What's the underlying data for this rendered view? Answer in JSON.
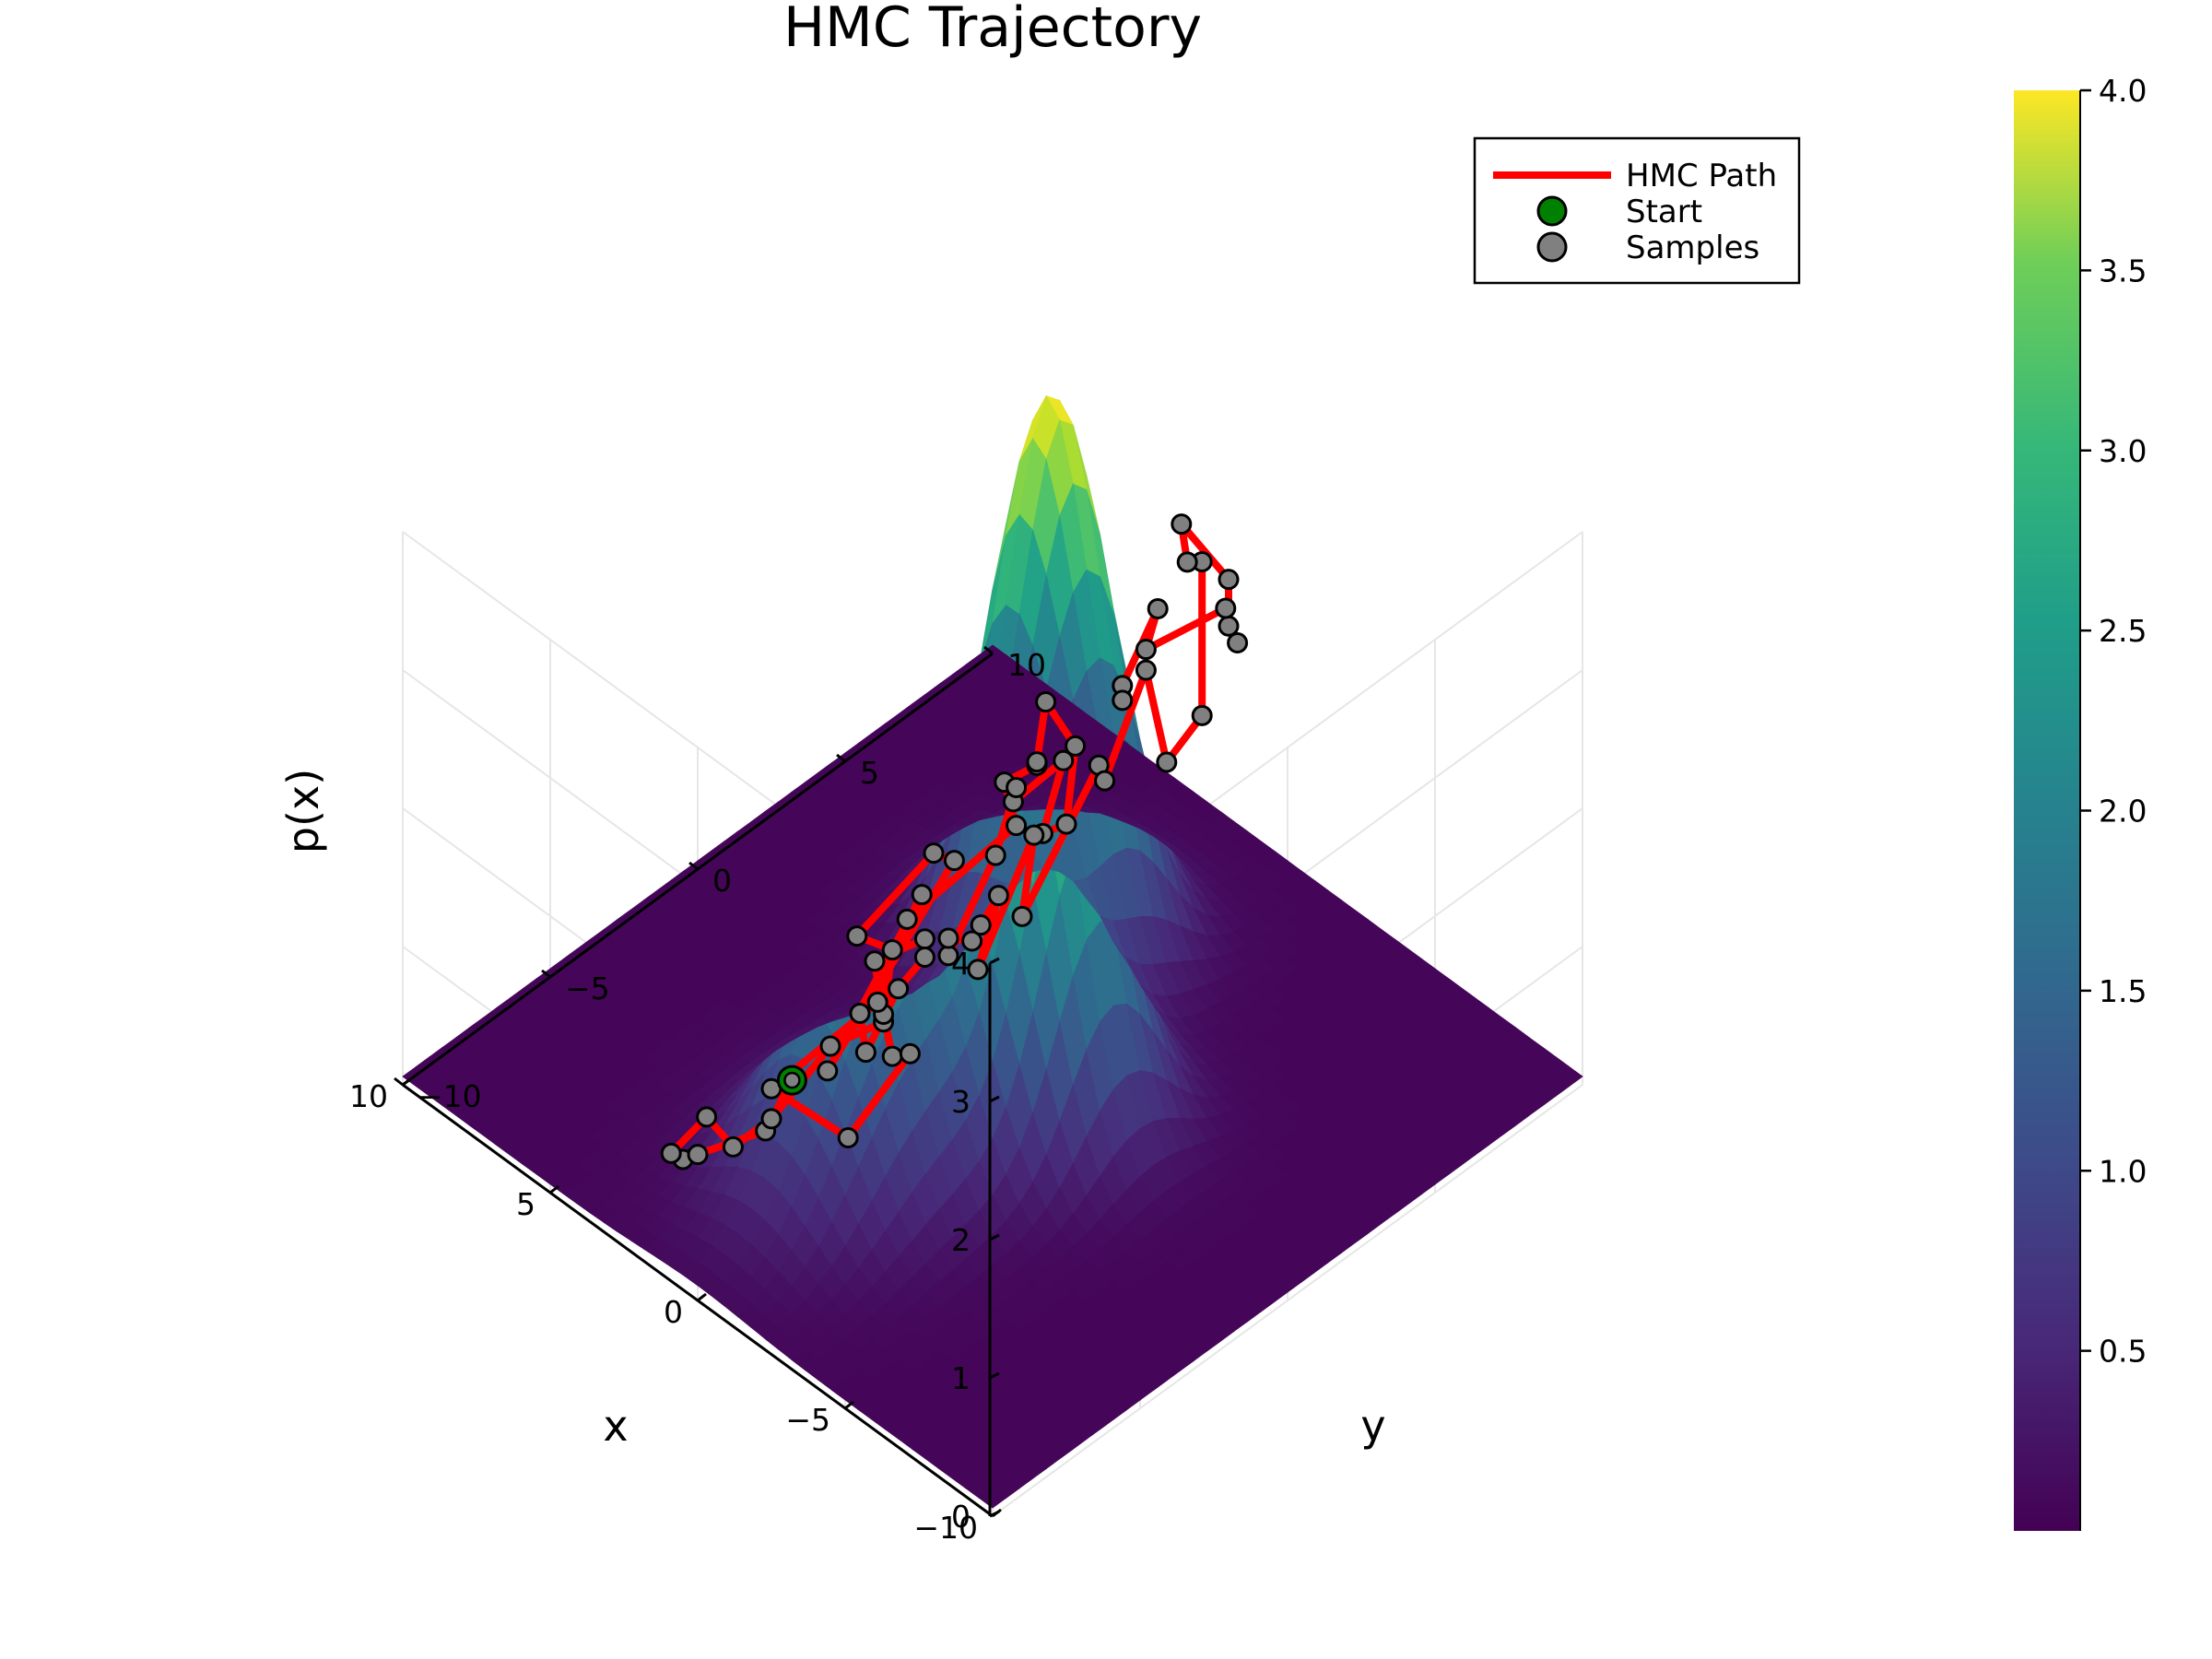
{
  "chart_data": {
    "type": "surface",
    "title": "HMC Trajectory",
    "xlabel": "x",
    "ylabel": "y",
    "zlabel": "p(x)",
    "xlim": [
      -10,
      10
    ],
    "ylim": [
      -10,
      10
    ],
    "zlim": [
      0,
      4
    ],
    "x_ticks": [
      -10,
      -5,
      0,
      5,
      10
    ],
    "x_tick_labels": [
      "−10",
      "−5",
      "0",
      "5",
      "10"
    ],
    "y_ticks": [
      -10,
      -5,
      0,
      5,
      10
    ],
    "y_tick_labels": [
      "−10",
      "−5",
      "0",
      "5",
      "10"
    ],
    "z_ticks": [
      0,
      1,
      2,
      3,
      4
    ],
    "z_tick_labels": [
      "0",
      "1",
      "2",
      "3",
      "4"
    ],
    "grid": true,
    "colormap": "viridis",
    "colorbar": {
      "range": [
        0,
        4
      ],
      "ticks": [
        0.5,
        1.0,
        1.5,
        2.0,
        2.5,
        3.0,
        3.5,
        4.0
      ],
      "tick_labels": [
        "0.5",
        "1.0",
        "1.5",
        "2.0",
        "2.5",
        "3.0",
        "3.5",
        "4.0"
      ]
    },
    "legend": {
      "position": "top-right",
      "entries": [
        {
          "label": "HMC Path",
          "kind": "line",
          "color": "#ff0000"
        },
        {
          "label": "Start",
          "kind": "marker",
          "color": "#008000"
        },
        {
          "label": "Samples",
          "kind": "marker",
          "color": "#808080"
        }
      ]
    },
    "surface_modes": [
      {
        "x": 0,
        "y": -4,
        "amp": 2.0,
        "sx": 1.7,
        "sy": 2.2
      },
      {
        "x": -2,
        "y": 0,
        "amp": 3.0,
        "sx": 1.5,
        "sy": 1.5
      },
      {
        "x": 2,
        "y": 4,
        "amp": 4.0,
        "sx": 1.5,
        "sy": 1.5
      }
    ],
    "start": {
      "x": 0.3,
      "y": -6.5,
      "z": 1.0
    },
    "samples": [
      [
        0.3,
        -6.5,
        1.0
      ],
      [
        1.5,
        -6.2,
        0.4
      ],
      [
        3.2,
        -7.3,
        0.1
      ],
      [
        3.0,
        -7.0,
        0.12
      ],
      [
        3.7,
        -7.2,
        0.05
      ],
      [
        3.4,
        -6.3,
        0.22
      ],
      [
        2.8,
        -6.0,
        0.05
      ],
      [
        2.0,
        -5.5,
        0.3
      ],
      [
        -0.2,
        -5.7,
        1.2
      ],
      [
        -1.5,
        -5.2,
        1.5
      ],
      [
        -0.9,
        -4.9,
        1.8
      ],
      [
        -2.2,
        -4.5,
        2.1
      ],
      [
        -2.3,
        -4.6,
        2.0
      ],
      [
        -1.3,
        -4.5,
        1.6
      ],
      [
        -0.3,
        -4.6,
        1.0
      ],
      [
        0.7,
        -3.8,
        1.0
      ],
      [
        -0.8,
        -3.2,
        2.0
      ],
      [
        1.2,
        -4.4,
        0.6
      ],
      [
        -1.2,
        -2.5,
        2.2
      ],
      [
        -1.0,
        -3.0,
        2.3
      ],
      [
        0.3,
        -4.3,
        1.7
      ],
      [
        -0.3,
        -3.7,
        1.6
      ],
      [
        0.6,
        -3.1,
        0.9
      ],
      [
        2.2,
        -1.2,
        0.05
      ],
      [
        1.8,
        -1.0,
        0.1
      ],
      [
        0.9,
        -4.0,
        0.1
      ],
      [
        3.5,
        -4.0,
        0.05
      ],
      [
        1.3,
        -2.6,
        0.8
      ],
      [
        0.8,
        -2.1,
        1.4
      ],
      [
        -2.4,
        -1.6,
        2.5
      ],
      [
        -2.8,
        -2.4,
        3.0
      ],
      [
        -3.6,
        -2.1,
        3.2
      ],
      [
        -3.2,
        -1.7,
        3.1
      ],
      [
        -2.6,
        -0.8,
        3.3
      ],
      [
        -3.8,
        -1.0,
        3.2
      ],
      [
        -4.5,
        -2.0,
        2.9
      ],
      [
        -4.0,
        -2.3,
        2.8
      ],
      [
        -3.3,
        -0.9,
        3.0
      ],
      [
        -1.8,
        -1.1,
        2.5
      ],
      [
        -1.2,
        -0.4,
        2.4
      ],
      [
        -0.5,
        -0.4,
        1.8
      ],
      [
        -0.1,
        -1.6,
        1.2
      ],
      [
        0.3,
        -1.2,
        1.2
      ],
      [
        0.8,
        0.1,
        0.9
      ],
      [
        0.7,
        0.3,
        1.0
      ],
      [
        -0.2,
        0.0,
        1.4
      ],
      [
        1.0,
        0.5,
        0.6
      ],
      [
        0.6,
        2.0,
        1.4
      ],
      [
        1.8,
        2.8,
        0.5
      ],
      [
        -0.8,
        2.8,
        2.0
      ],
      [
        -0.3,
        3.5,
        1.7
      ],
      [
        -1.0,
        4.2,
        2.5
      ],
      [
        -0.6,
        5.3,
        1.6
      ],
      [
        -1.4,
        5.7,
        2.0
      ],
      [
        -2.0,
        5.1,
        3.3
      ],
      [
        -2.4,
        4.2,
        3.5
      ],
      [
        -2.7,
        3.7,
        3.9
      ],
      [
        -3.5,
        4.5,
        3.5
      ],
      [
        -3.3,
        4.7,
        3.1
      ],
      [
        -3.2,
        5.1,
        2.9
      ],
      [
        -3.8,
        4.1,
        3.4
      ],
      [
        -1.8,
        3.4,
        2.9
      ],
      [
        -1.7,
        3.9,
        3.1
      ],
      [
        -1.6,
        2.8,
        2.7
      ],
      [
        -1.3,
        3.1,
        2.5
      ]
    ]
  }
}
